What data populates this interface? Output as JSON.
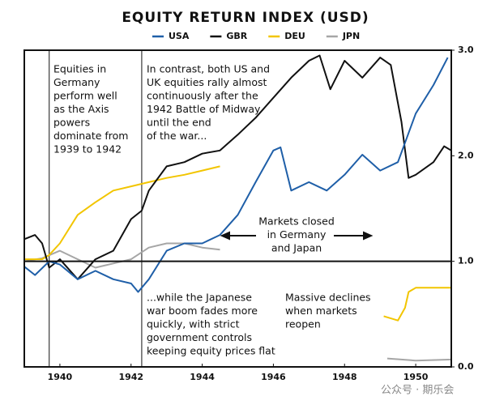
{
  "chart_data": {
    "type": "line",
    "title": "EQUITY RETURN INDEX (USD)",
    "xlim": [
      1939,
      1951
    ],
    "xticks": [
      1940,
      1942,
      1944,
      1946,
      1948,
      1950
    ],
    "ylim": [
      0,
      3
    ],
    "yticks": [
      {
        "value": 0,
        "label": "0.0"
      },
      {
        "value": 1,
        "label": "1.0"
      },
      {
        "value": 2,
        "label": "2.0"
      },
      {
        "value": 3,
        "label": "3.0"
      }
    ],
    "reference_x": [
      1939.7,
      1942.3
    ],
    "reference_y": 1,
    "series": [
      {
        "name": "USA",
        "color": "#1f5fa8",
        "x": [
          1939,
          1939.3,
          1939.7,
          1940,
          1940.5,
          1941,
          1941.5,
          1942,
          1942.2,
          1942.5,
          1943,
          1943.5,
          1944,
          1944.5,
          1945,
          1945.5,
          1946,
          1946.2,
          1946.5,
          1947,
          1947.5,
          1948,
          1948.5,
          1949,
          1949.5,
          1950,
          1950.5,
          1950.9
        ],
        "values": [
          0.95,
          0.87,
          1.0,
          0.97,
          0.83,
          0.91,
          0.83,
          0.79,
          0.71,
          0.83,
          1.1,
          1.17,
          1.17,
          1.25,
          1.44,
          1.75,
          2.05,
          2.08,
          1.67,
          1.75,
          1.67,
          1.82,
          2.01,
          1.86,
          1.94,
          2.4,
          2.67,
          2.93
        ]
      },
      {
        "name": "GBR",
        "color": "#111111",
        "x": [
          1939,
          1939.3,
          1939.5,
          1939.7,
          1940,
          1940.5,
          1941,
          1941.5,
          1942,
          1942.3,
          1942.5,
          1943,
          1943.5,
          1944,
          1944.5,
          1945,
          1945.5,
          1946,
          1946.5,
          1947,
          1947.3,
          1947.6,
          1948,
          1948.5,
          1949,
          1949.3,
          1949.6,
          1949.8,
          1950,
          1950.5,
          1950.8,
          1951
        ],
        "values": [
          1.21,
          1.25,
          1.17,
          0.94,
          1.02,
          0.83,
          1.02,
          1.1,
          1.4,
          1.48,
          1.67,
          1.9,
          1.94,
          2.02,
          2.05,
          2.2,
          2.36,
          2.55,
          2.74,
          2.9,
          2.95,
          2.63,
          2.9,
          2.74,
          2.93,
          2.86,
          2.32,
          1.79,
          1.82,
          1.94,
          2.09,
          2.05
        ]
      },
      {
        "name": "DEU",
        "color": "#f2c500",
        "x": [
          1939,
          1939.5,
          1939.7,
          1940,
          1940.5,
          1941,
          1941.5,
          1942,
          1942.5,
          1943,
          1943.5,
          1944,
          1944.5,
          1947,
          1949.1,
          1949.5,
          1949.7,
          1949.8,
          1950,
          1950.5,
          1951
        ],
        "values": [
          1.02,
          1.02,
          1.06,
          1.17,
          1.44,
          1.56,
          1.67,
          1.71,
          1.75,
          1.79,
          1.82,
          1.86,
          1.9,
          null,
          0.48,
          0.44,
          0.56,
          0.71,
          0.75,
          0.75,
          0.75
        ]
      },
      {
        "name": "JPN",
        "color": "#a6a6a6",
        "x": [
          1939,
          1939.5,
          1940,
          1940.5,
          1941,
          1941.5,
          1942,
          1942.5,
          1943,
          1943.5,
          1944,
          1944.5,
          1947,
          1949.2,
          1950,
          1951
        ],
        "values": [
          1.0,
          1.03,
          1.1,
          1.02,
          0.94,
          0.98,
          1.02,
          1.13,
          1.17,
          1.17,
          1.13,
          1.11,
          null,
          0.08,
          0.06,
          0.07
        ]
      }
    ],
    "annotations": [
      {
        "lines": [
          "Equities in",
          "Germany",
          "perform well",
          "as the Axis",
          "powers",
          "dominate from",
          "1939 to 1942"
        ]
      },
      {
        "lines": [
          "In contrast, both US and",
          "UK equities rally almost",
          "continuously after the",
          "1942 Battle of Midway",
          "until the end",
          "of the war..."
        ]
      },
      {
        "lines": [
          "Markets closed",
          "in Germany",
          "and Japan"
        ]
      },
      {
        "lines": [
          "...while the Japanese",
          "war boom fades more",
          "quickly, with strict",
          "government controls",
          "keeping equity prices flat"
        ]
      },
      {
        "lines": [
          "Massive declines",
          "when markets",
          "reopen"
        ]
      }
    ],
    "watermark": "公众号 · 期乐会"
  }
}
